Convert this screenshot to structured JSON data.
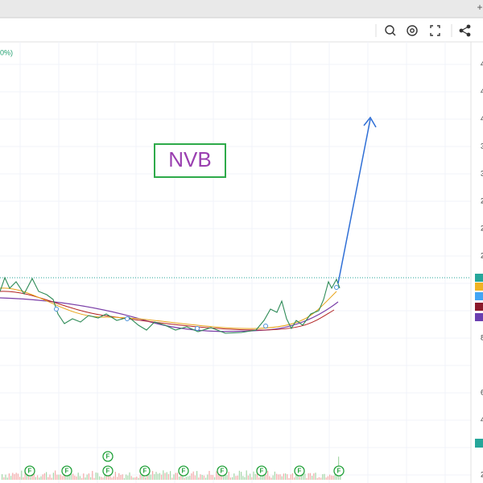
{
  "legend_text": "0%)",
  "annotation": "NVB",
  "price_axis_labels": [
    "4",
    "4",
    "4",
    "3",
    "3",
    "2",
    "2",
    "2",
    "8",
    "6",
    "4",
    "2"
  ],
  "event_markers": [
    "F",
    "F",
    "F",
    "F",
    "F",
    "F",
    "F",
    "F",
    "F",
    "F"
  ]
}
